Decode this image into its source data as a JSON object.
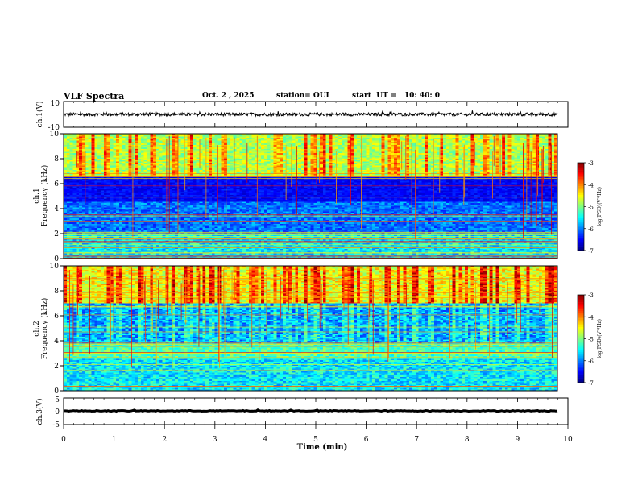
{
  "header": {
    "title": "VLF Spectra",
    "date": "Oct. 2 , 2025",
    "station": "station= OUI",
    "start": "start  UT =   10: 40: 0"
  },
  "chart_data": [
    {
      "type": "line",
      "name": "ch1-waveform",
      "ylabel": "ch.1(V)",
      "ylim": [
        -10,
        10
      ],
      "yticks": [
        "10",
        "-10"
      ],
      "mean": 0,
      "amplitude": 1.2
    },
    {
      "type": "heatmap",
      "name": "ch1-spectrogram",
      "ylabel": "ch.1\nFrequency (kHz)",
      "ylabel_top": "ch.1",
      "ylabel_bottom": "Frequency (kHz)",
      "ylim": [
        0,
        10
      ],
      "yticks": [
        "0",
        "2",
        "4",
        "6",
        "8",
        "10"
      ],
      "colorbar": {
        "label": "log(PSD)(V²/Hz)",
        "range": [
          -7,
          -3
        ],
        "ticks": [
          "-3",
          "-4",
          "-5",
          "-6",
          "-7"
        ]
      }
    },
    {
      "type": "heatmap",
      "name": "ch2-spectrogram",
      "ylabel_top": "ch.2",
      "ylabel_bottom": "Frequency (kHz)",
      "ylim": [
        0,
        10
      ],
      "yticks": [
        "0",
        "2",
        "4",
        "6",
        "8",
        "10"
      ],
      "colorbar": {
        "label": "log(PSD)(V²/Hz)",
        "range": [
          -7,
          -3
        ],
        "ticks": [
          "-3",
          "-4",
          "-5",
          "-6",
          "-7"
        ]
      }
    },
    {
      "type": "line",
      "name": "ch3-waveform",
      "ylabel": "ch.3(V)",
      "ylim": [
        -5,
        5
      ],
      "yticks": [
        "5",
        "0",
        "-5"
      ],
      "mean": 0,
      "amplitude": 0.15
    }
  ],
  "xaxis": {
    "label": "Time (min)",
    "xlim": [
      0,
      10
    ],
    "ticks": [
      "0",
      "1",
      "2",
      "3",
      "4",
      "5",
      "6",
      "7",
      "8",
      "9",
      "10"
    ]
  },
  "colors": {
    "colormap": [
      "#00007f",
      "#0000ff",
      "#007fff",
      "#00ffff",
      "#7fff7f",
      "#ffff00",
      "#ff7f00",
      "#ff0000",
      "#7f0000"
    ]
  }
}
